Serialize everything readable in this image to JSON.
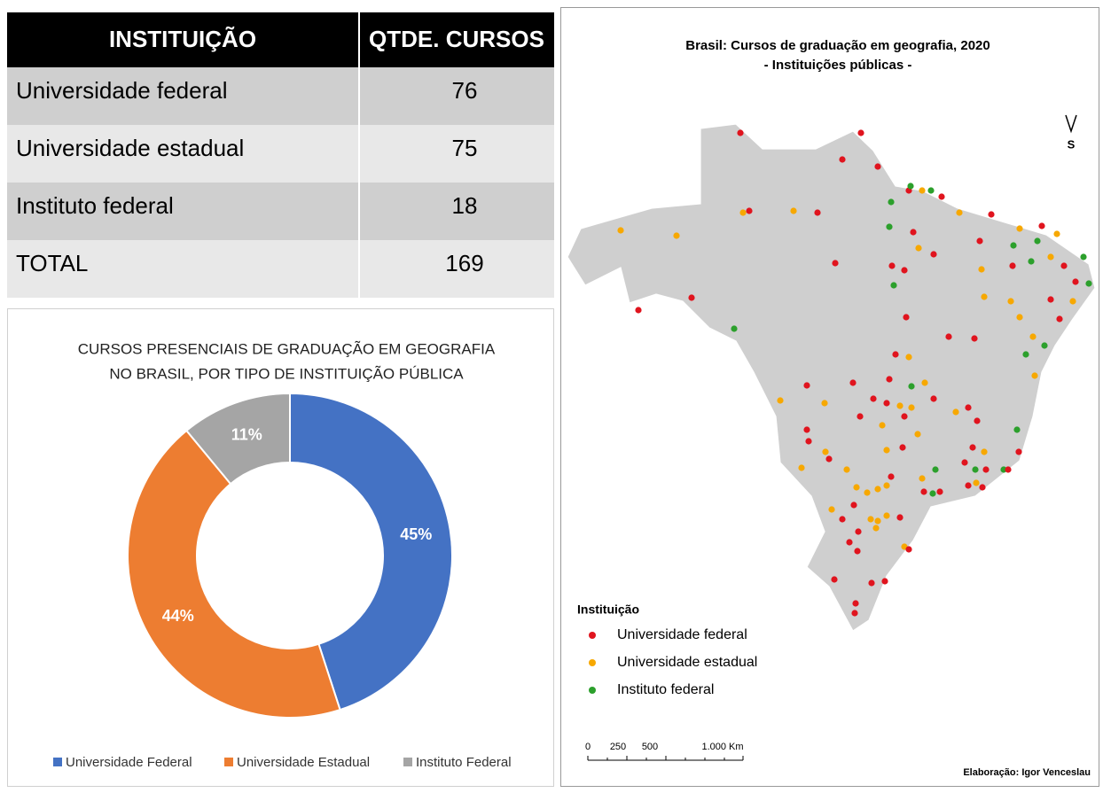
{
  "table": {
    "header": [
      "INSTITUIÇÃO",
      "QTDE. CURSOS"
    ],
    "rows": [
      [
        "Universidade federal",
        76
      ],
      [
        "Universidade estadual",
        75
      ],
      [
        "Instituto federal",
        18
      ],
      [
        "TOTAL",
        169
      ]
    ]
  },
  "chart_data": {
    "type": "pie",
    "donut": true,
    "title": [
      "CURSOS PRESENCIAIS DE GRADUAÇÃO EM GEOGRAFIA",
      "NO BRASIL, POR TIPO DE INSTITUIÇÃO PÚBLICA"
    ],
    "categories": [
      "Universidade Federal",
      "Universidade Estadual",
      "Instituto Federal"
    ],
    "values": [
      45,
      44,
      11
    ],
    "value_labels": [
      "45%",
      "44%",
      "11%"
    ],
    "colors": [
      "#4472c4",
      "#ed7d31",
      "#a5a5a5"
    ],
    "legend": "bottom"
  },
  "map": {
    "title": [
      "Brasil: Cursos de graduação em geografia, 2020",
      "- Instituições públicas -"
    ],
    "north": "S",
    "legend": {
      "title": "Instituição",
      "items": [
        {
          "name": "Universidade federal",
          "color": "#e0141e"
        },
        {
          "name": "Universidade estadual",
          "color": "#f7a800"
        },
        {
          "name": "Instituto federal",
          "color": "#2ca02c"
        }
      ]
    },
    "scale": [
      "0",
      "250",
      "500",
      "1.000 Km"
    ],
    "credit": "Elaboração: Igor Venceslau"
  }
}
